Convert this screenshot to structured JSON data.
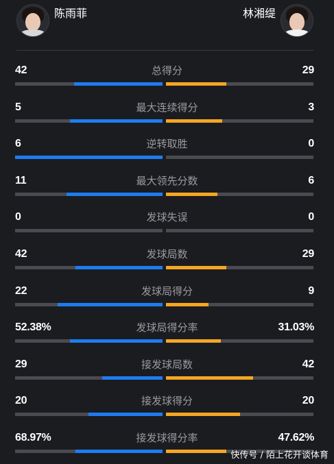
{
  "players": {
    "left": {
      "name": "陈雨菲",
      "color": "#1e7cf2"
    },
    "right": {
      "name": "林湘缇",
      "color": "#f5a623"
    }
  },
  "stats": [
    {
      "label": "总得分",
      "left": "42",
      "right": "29",
      "left_share": 0.6,
      "right_share": 0.41
    },
    {
      "label": "最大连续得分",
      "left": "5",
      "right": "3",
      "left_share": 0.63,
      "right_share": 0.38
    },
    {
      "label": "逆转取胜",
      "left": "6",
      "right": "0",
      "left_share": 1.0,
      "right_share": 0.0
    },
    {
      "label": "最大领先分数",
      "left": "11",
      "right": "6",
      "left_share": 0.65,
      "right_share": 0.35
    },
    {
      "label": "发球失误",
      "left": "0",
      "right": "0",
      "left_share": 0.0,
      "right_share": 0.0
    },
    {
      "label": "发球局数",
      "left": "42",
      "right": "29",
      "left_share": 0.59,
      "right_share": 0.41
    },
    {
      "label": "发球局得分",
      "left": "22",
      "right": "9",
      "left_share": 0.71,
      "right_share": 0.29
    },
    {
      "label": "发球局得分率",
      "left": "52.38%",
      "right": "31.03%",
      "left_share": 0.63,
      "right_share": 0.37
    },
    {
      "label": "接发球局数",
      "left": "29",
      "right": "42",
      "left_share": 0.41,
      "right_share": 0.59
    },
    {
      "label": "接发球得分",
      "left": "20",
      "right": "20",
      "left_share": 0.5,
      "right_share": 0.5
    },
    {
      "label": "接发球得分率",
      "left": "68.97%",
      "right": "47.62%",
      "left_share": 0.59,
      "right_share": 0.41
    }
  ],
  "watermark": "快传号 / 陌上花开谈体育"
}
